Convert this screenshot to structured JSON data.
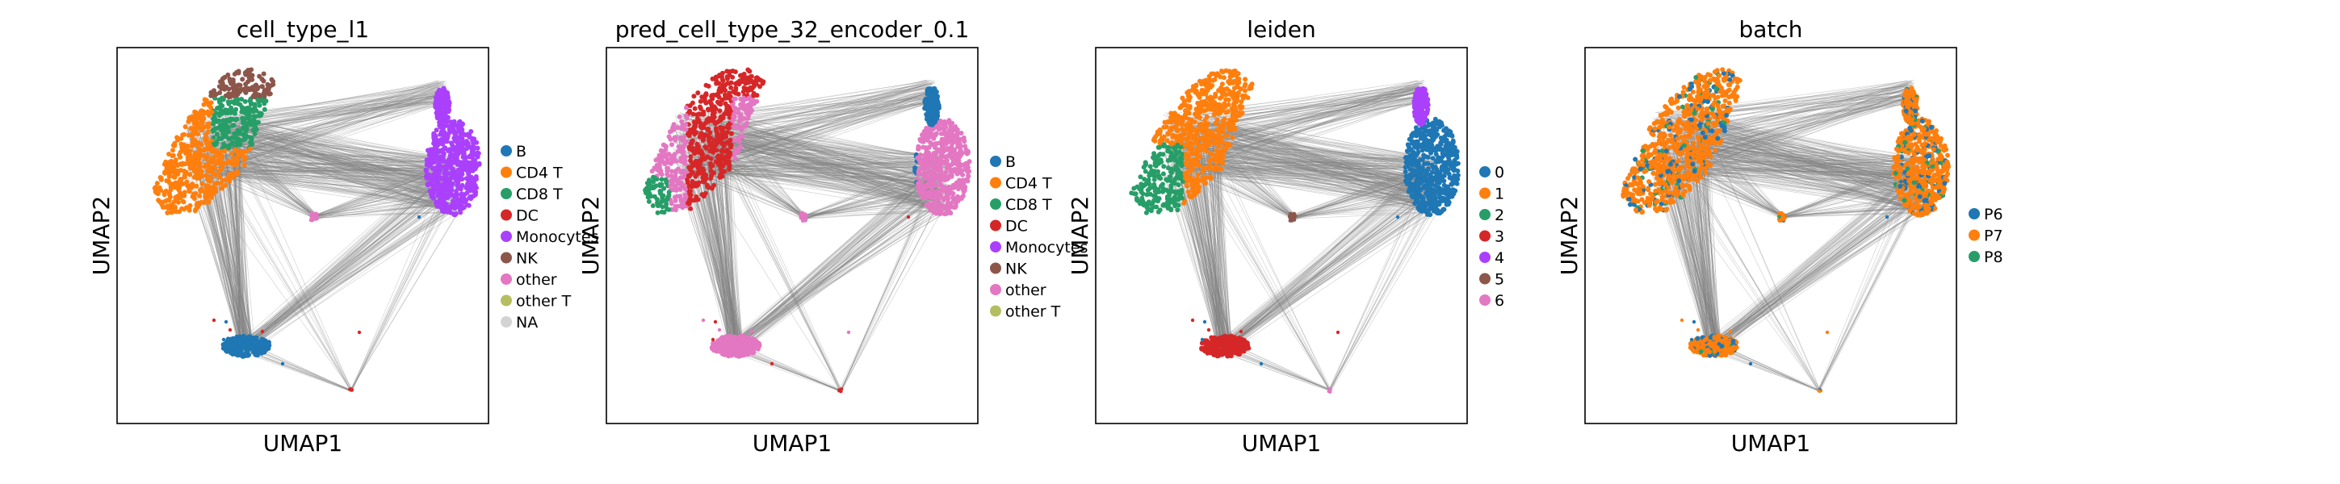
{
  "chart_data": [
    {
      "type": "scatter",
      "title": "cell_type_l1",
      "xlabel": "UMAP1",
      "ylabel": "UMAP2",
      "grid": false,
      "legend_placement": "right",
      "categories": [
        {
          "name": "B",
          "color": "#1f77b4"
        },
        {
          "name": "CD4 T",
          "color": "#ff7f0e"
        },
        {
          "name": "CD8 T",
          "color": "#279e68"
        },
        {
          "name": "DC",
          "color": "#d62728"
        },
        {
          "name": "Monocytes",
          "color": "#aa40fc"
        },
        {
          "name": "NK",
          "color": "#8c564b"
        },
        {
          "name": "other",
          "color": "#e377c2"
        },
        {
          "name": "other T",
          "color": "#b5bd61"
        },
        {
          "name": "NA",
          "color": "#d3d3d3"
        }
      ]
    },
    {
      "type": "scatter",
      "title": "pred_cell_type_32_encoder_0.1",
      "xlabel": "UMAP1",
      "ylabel": "UMAP2",
      "grid": false,
      "legend_placement": "right",
      "categories": [
        {
          "name": "B",
          "color": "#1f77b4"
        },
        {
          "name": "CD4 T",
          "color": "#ff7f0e"
        },
        {
          "name": "CD8 T",
          "color": "#279e68"
        },
        {
          "name": "DC",
          "color": "#d62728"
        },
        {
          "name": "Monocytes",
          "color": "#aa40fc"
        },
        {
          "name": "NK",
          "color": "#8c564b"
        },
        {
          "name": "other",
          "color": "#e377c2"
        },
        {
          "name": "other T",
          "color": "#b5bd61"
        }
      ]
    },
    {
      "type": "scatter",
      "title": "leiden",
      "xlabel": "UMAP1",
      "ylabel": "UMAP2",
      "grid": false,
      "legend_placement": "right",
      "categories": [
        {
          "name": "0",
          "color": "#1f77b4"
        },
        {
          "name": "1",
          "color": "#ff7f0e"
        },
        {
          "name": "2",
          "color": "#279e68"
        },
        {
          "name": "3",
          "color": "#d62728"
        },
        {
          "name": "4",
          "color": "#aa40fc"
        },
        {
          "name": "5",
          "color": "#8c564b"
        },
        {
          "name": "6",
          "color": "#e377c2"
        }
      ]
    },
    {
      "type": "scatter",
      "title": "batch",
      "xlabel": "UMAP1",
      "ylabel": "UMAP2",
      "grid": false,
      "legend_placement": "right",
      "categories": [
        {
          "name": "P6",
          "color": "#1f77b4"
        },
        {
          "name": "P7",
          "color": "#ff7f0e"
        },
        {
          "name": "P8",
          "color": "#279e68"
        }
      ]
    }
  ],
  "colors": {
    "edge": "#808080",
    "axes": "#000000",
    "background": "#ffffff"
  }
}
